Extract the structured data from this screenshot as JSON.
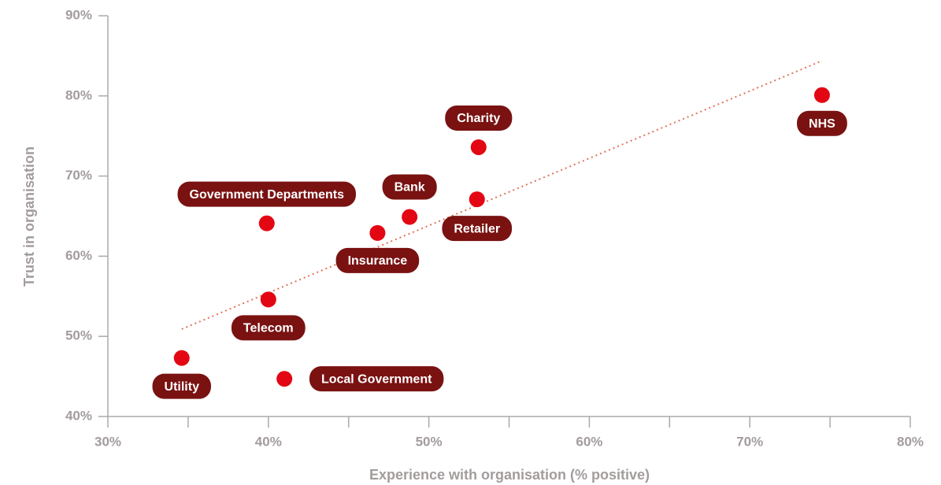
{
  "chart_data": {
    "type": "scatter",
    "xlabel": "Experience with organisation (% positive)",
    "ylabel": "Trust in organisation",
    "series": [
      {
        "color": "#e30613",
        "label_color": "#7a1212",
        "labels": [
          "Utility",
          "Government Departments",
          "Telecom",
          "Local Government",
          "Insurance",
          "Bank",
          "Retailer",
          "Charity",
          "NHS"
        ],
        "x": [
          34.6,
          39.9,
          40.0,
          41.0,
          46.8,
          48.8,
          53.0,
          53.1,
          74.5
        ],
        "values": [
          47.3,
          64.1,
          54.6,
          44.7,
          62.9,
          64.9,
          67.1,
          73.6,
          80.1
        ]
      }
    ],
    "trendline": {
      "color": "#e0735a",
      "x": [
        34.6,
        74.4
      ],
      "values": [
        50.9,
        84.3
      ]
    },
    "xlim": [
      30,
      80
    ],
    "ylim": [
      40,
      90
    ],
    "xticks": [
      {
        "value": 30,
        "label": "30%"
      },
      {
        "value": 40,
        "label": "40%"
      },
      {
        "value": 50,
        "label": "50%"
      },
      {
        "value": 60,
        "label": "60%"
      },
      {
        "value": 70,
        "label": "70%"
      },
      {
        "value": 80,
        "label": "80%"
      }
    ],
    "xminor_ticks": [
      35,
      45,
      55,
      65,
      75
    ],
    "yticks": [
      {
        "value": 40,
        "label": "40%"
      },
      {
        "value": 50,
        "label": "50%"
      },
      {
        "value": 60,
        "label": "60%"
      },
      {
        "value": 70,
        "label": "70%"
      },
      {
        "value": 80,
        "label": "80%"
      },
      {
        "value": 90,
        "label": "90%"
      }
    ]
  }
}
